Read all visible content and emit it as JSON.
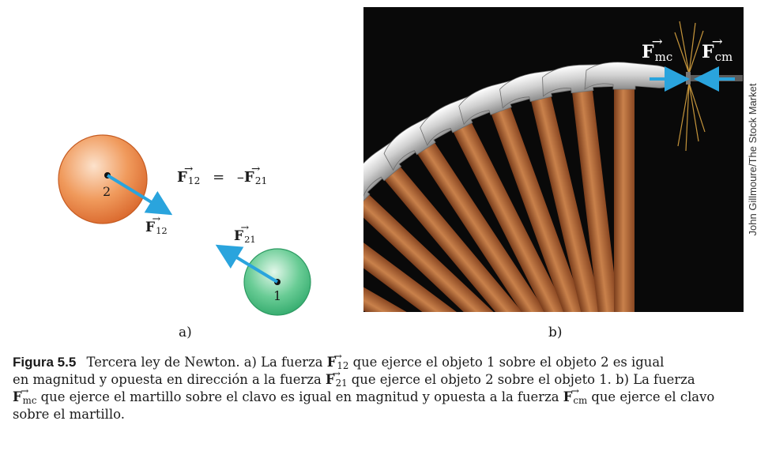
{
  "panel_a": {
    "equation": {
      "lhs_symbol": "F",
      "lhs_sub": "12",
      "equals": "=",
      "minus": "–",
      "rhs_symbol": "F",
      "rhs_sub": "21"
    },
    "object_2_label": "2",
    "object_1_label": "1",
    "force_on_2": {
      "symbol": "F",
      "sub": "12"
    },
    "force_on_1": {
      "symbol": "F",
      "sub": "21"
    },
    "panel_label": "a)",
    "colors": {
      "object_2": "#ec8a4e",
      "object_1": "#57c38c",
      "arrow": "#2aa4dd"
    }
  },
  "panel_b": {
    "force_mc": {
      "symbol": "F",
      "sub": "mc"
    },
    "force_cm": {
      "symbol": "F",
      "sub": "cm"
    },
    "panel_label": "b)",
    "credit": "John Gillmoure/The Stock Market",
    "colors": {
      "background": "#090909",
      "handle": "#b5683b",
      "head": "#d8d8d8",
      "arrow": "#2aa4dd"
    }
  },
  "caption": {
    "figure_number": "Figura 5.5",
    "line1_a": "Tercera ley de Newton. a) La fuerza ",
    "line1_sym": "F",
    "line1_sub": "12",
    "line1_b": " que ejerce el objeto 1 sobre el objeto 2 es igual",
    "line2_a": "en magnitud y opuesta en dirección a la fuerza ",
    "line2_sym": "F",
    "line2_sub": "21",
    "line2_b": " que ejerce el objeto 2 sobre el objeto 1. b) La fuerza",
    "line3_sym": "F",
    "line3_sub": "mc",
    "line3_a": " que ejerce el martillo sobre el clavo es igual en magnitud y opuesta a la fuerza ",
    "line3_sym2": "F",
    "line3_sub2": "cm",
    "line3_b": " que ejerce el clavo",
    "line4": "sobre el martillo."
  }
}
